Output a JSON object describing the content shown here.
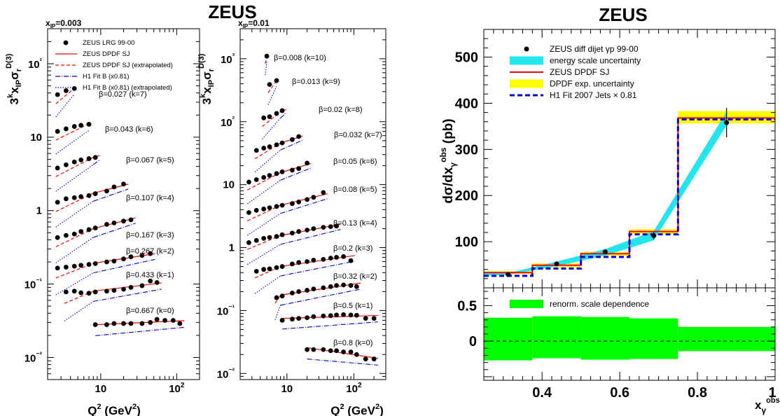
{
  "figure": {
    "left_title": "ZEUS",
    "right_title": "ZEUS"
  },
  "chart_data": [
    {
      "type": "scatter",
      "title": "",
      "panel_label": "x_IP=0.003",
      "xlabel": "Q² (GeV²)",
      "ylabel": "3^k x_IP σ_r^D(3)",
      "xscale": "log",
      "yscale": "log",
      "xlim": [
        2,
        200
      ],
      "ylim": [
        0.005,
        300
      ],
      "xticks": [
        "10",
        "10²"
      ],
      "yticks": [
        "10⁻²",
        "10⁻¹",
        "1",
        "10",
        "10²"
      ],
      "legend": {
        "placement": "top-left",
        "entries": [
          {
            "label": "ZEUS LRG 99-00",
            "style": "dot",
            "color": "#000000"
          },
          {
            "label": "ZEUS DPDF SJ",
            "style": "solid",
            "color": "#ff0000"
          },
          {
            "label": "ZEUS DPDF SJ (extrapolated)",
            "style": "dashed",
            "color": "#ff0000"
          },
          {
            "label": "H1 Fit B (x0.81)",
            "style": "dashdot",
            "color": "#0000cc"
          },
          {
            "label": "H1 Fit B (x0.81) (extrapolated)",
            "style": "dotted",
            "color": "#0000cc"
          }
        ]
      },
      "series": [
        {
          "name": "β=0.027 (k=7)",
          "x": [
            2.7,
            3.5,
            4.5
          ],
          "y": [
            38,
            43,
            46
          ]
        },
        {
          "name": "β=0.043 (k=6)",
          "x": [
            2.7,
            3.5,
            4.5,
            5.5,
            7.0
          ],
          "y": [
            12,
            13,
            14,
            14.5,
            15
          ]
        },
        {
          "name": "β=0.067 (k=5)",
          "x": [
            2.7,
            3.5,
            4.5,
            5.5,
            7.0,
            8.5
          ],
          "y": [
            3.8,
            4.2,
            4.6,
            4.9,
            5.1,
            5.3
          ]
        },
        {
          "name": "β=0.107 (k=4)",
          "x": [
            2.7,
            3.5,
            4.5,
            5.5,
            7.0,
            8.5,
            12,
            15,
            20
          ],
          "y": [
            1.3,
            1.45,
            1.5,
            1.55,
            1.6,
            1.7,
            1.85,
            2.1,
            2.3
          ]
        },
        {
          "name": "β=0.167 (k=3)",
          "x": [
            2.7,
            3.5,
            4.5,
            5.5,
            7.0,
            8.5,
            12,
            15,
            20,
            25
          ],
          "y": [
            0.43,
            0.46,
            0.48,
            0.52,
            0.55,
            0.58,
            0.65,
            0.68,
            0.72,
            0.75
          ]
        },
        {
          "name": "β=0.267 (k=2)",
          "x": [
            2.7,
            3.5,
            4.5,
            5.5,
            7.0,
            8.5,
            12,
            15,
            20,
            25,
            35,
            45
          ],
          "y": [
            0.165,
            0.17,
            0.175,
            0.18,
            0.185,
            0.19,
            0.2,
            0.205,
            0.22,
            0.235,
            0.245,
            0.26
          ]
        },
        {
          "name": "β=0.433 (k=1)",
          "x": [
            3.5,
            4.5,
            5.5,
            7.0,
            8.5,
            12,
            15,
            20,
            25,
            35,
            45,
            55
          ],
          "y": [
            0.078,
            0.08,
            0.076,
            0.075,
            0.078,
            0.08,
            0.082,
            0.085,
            0.09,
            0.095,
            0.11,
            0.105
          ]
        },
        {
          "name": "β=0.667 (k=0)",
          "x": [
            8.5,
            12,
            15,
            20,
            25,
            35,
            45,
            55,
            70,
            90,
            110
          ],
          "y": [
            0.028,
            0.028,
            0.029,
            0.029,
            0.029,
            0.029,
            0.03,
            0.033,
            0.032,
            0.032,
            0.029
          ]
        }
      ]
    },
    {
      "type": "scatter",
      "title": "",
      "panel_label": "x_IP=0.01",
      "xlabel": "Q² (GeV²)",
      "ylabel": "3^k x_IP σ_r^D(3)",
      "xscale": "log",
      "yscale": "log",
      "xlim": [
        2,
        300
      ],
      "ylim": [
        0.008,
        3000
      ],
      "xticks": [
        "10",
        "10²"
      ],
      "yticks": [
        "10⁻²",
        "10⁻¹",
        "1",
        "10",
        "10²",
        "10³"
      ],
      "series": [
        {
          "name": "β=0.008 (k=10)",
          "x": [
            5.0
          ],
          "y": [
            1100
          ]
        },
        {
          "name": "β=0.013 (k=9)",
          "x": [
            5.5,
            7.0
          ],
          "y": [
            390,
            450
          ]
        },
        {
          "name": "β=0.02 (k=8)",
          "x": [
            4.5,
            5.5,
            7.0,
            8.5
          ],
          "y": [
            115,
            120,
            135,
            150
          ]
        },
        {
          "name": "β=0.032 (k=7)",
          "x": [
            3.5,
            4.5,
            5.5,
            7.0,
            8.5,
            12,
            15
          ],
          "y": [
            35,
            38,
            40,
            43,
            46,
            52,
            58
          ]
        },
        {
          "name": "β=0.05 (k=6)",
          "x": [
            2.7,
            3.5,
            4.5,
            5.5,
            7.0,
            8.5,
            12,
            15,
            20
          ],
          "y": [
            11,
            12,
            13,
            14,
            15,
            16,
            17,
            18,
            22
          ]
        },
        {
          "name": "β=0.08 (k=5)",
          "x": [
            2.7,
            3.5,
            4.5,
            5.5,
            7.0,
            8.5,
            12,
            15,
            20,
            25,
            35
          ],
          "y": [
            3.6,
            3.9,
            4.1,
            4.3,
            4.5,
            4.7,
            5.0,
            5.3,
            5.8,
            6.3,
            7.5
          ]
        },
        {
          "name": "β=0.13 (k=4)",
          "x": [
            2.7,
            3.5,
            4.5,
            5.5,
            7.0,
            8.5,
            12,
            15,
            20,
            25,
            35,
            45,
            55
          ],
          "y": [
            1.2,
            1.3,
            1.4,
            1.45,
            1.5,
            1.6,
            1.7,
            1.8,
            1.9,
            2.0,
            2.1,
            2.15,
            2.2
          ]
        },
        {
          "name": "β=0.2 (k=3)",
          "x": [
            3.5,
            4.5,
            5.5,
            7.0,
            8.5,
            12,
            15,
            20,
            25,
            35,
            45,
            55,
            70,
            90
          ],
          "y": [
            0.42,
            0.45,
            0.46,
            0.48,
            0.5,
            0.55,
            0.58,
            0.6,
            0.63,
            0.65,
            0.68,
            0.7,
            0.72,
            0.62
          ]
        },
        {
          "name": "β=0.32 (k=2)",
          "x": [
            7.0,
            8.5,
            12,
            15,
            20,
            25,
            35,
            45,
            55,
            70,
            90,
            110
          ],
          "y": [
            0.16,
            0.17,
            0.19,
            0.2,
            0.21,
            0.22,
            0.23,
            0.24,
            0.25,
            0.255,
            0.25,
            0.24
          ]
        },
        {
          "name": "β=0.5 (k=1)",
          "x": [
            8.5,
            12,
            15,
            20,
            25,
            35,
            45,
            55,
            70,
            90,
            110,
            150,
            200
          ],
          "y": [
            0.07,
            0.073,
            0.075,
            0.077,
            0.08,
            0.082,
            0.083,
            0.085,
            0.086,
            0.085,
            0.084,
            0.075,
            0.075
          ]
        },
        {
          "name": "β=0.8 (k=0)",
          "x": [
            20,
            25,
            35,
            45,
            55,
            70,
            90,
            110,
            150,
            200
          ],
          "y": [
            0.024,
            0.024,
            0.024,
            0.023,
            0.023,
            0.022,
            0.022,
            0.02,
            0.017,
            0.017
          ]
        }
      ]
    },
    {
      "type": "bar",
      "title": "ZEUS",
      "xlabel": "x_γ^obs",
      "ylabel": "dσ/dx_γ^obs (pb)",
      "xlim": [
        0.25,
        1.0
      ],
      "ylim": [
        0,
        560
      ],
      "xticks": [
        "0.4",
        "0.6",
        "0.8",
        "1"
      ],
      "yticks": [
        "100",
        "200",
        "300",
        "400",
        "500"
      ],
      "legend": {
        "placement": "top-left",
        "entries": [
          {
            "label": "ZEUS diff dijet γp 99-00",
            "style": "dot",
            "color": "#000000"
          },
          {
            "label": "energy scale uncertainty",
            "style": "band",
            "color": "#22e5ee"
          },
          {
            "label": "ZEUS DPDF SJ",
            "style": "solid",
            "color": "#ff0000"
          },
          {
            "label": "DPDF exp. uncertainty",
            "style": "band",
            "color": "#ffff00"
          },
          {
            "label": "H1 Fit 2007 Jets × 0.81",
            "style": "dashed",
            "color": "#0000dd"
          }
        ]
      },
      "bins": [
        [
          0.25,
          0.375
        ],
        [
          0.375,
          0.5
        ],
        [
          0.5,
          0.625
        ],
        [
          0.625,
          0.75
        ],
        [
          0.75,
          1.0
        ]
      ],
      "data": {
        "x": [
          0.3125,
          0.4375,
          0.5625,
          0.6875,
          0.875
        ],
        "y": [
          29,
          52,
          78,
          113,
          358
        ],
        "yerr": [
          3,
          3,
          4,
          8,
          32
        ]
      },
      "energy_scale_band": {
        "x": [
          0.25,
          0.3125,
          0.4375,
          0.5625,
          0.6875,
          0.875
        ],
        "low": [
          26,
          28,
          47,
          70,
          103,
          352
        ],
        "high": [
          33,
          32,
          57,
          84,
          123,
          382
        ]
      },
      "zeus_dpdf_sj": [
        33,
        49,
        74,
        122,
        368
      ],
      "dpdf_exp_band": {
        "low": [
          30,
          45,
          70,
          117,
          356
        ],
        "high": [
          36,
          53,
          78,
          127,
          383
        ]
      },
      "h1_fit": [
        26,
        42,
        67,
        116,
        365
      ]
    },
    {
      "type": "bar",
      "title": "",
      "xlabel": "x_γ^obs",
      "ylabel": "",
      "xlim": [
        0.25,
        1.0
      ],
      "ylim": [
        -0.55,
        0.75
      ],
      "xticks": [
        "0.4",
        "0.6",
        "0.8",
        "1"
      ],
      "yticks": [
        "0",
        "0.5"
      ],
      "legend": {
        "placement": "top-left",
        "entries": [
          {
            "label": "renorm. scale dependence",
            "style": "band",
            "color": "#00ff00"
          }
        ]
      },
      "bins": [
        [
          0.25,
          0.375
        ],
        [
          0.375,
          0.5
        ],
        [
          0.5,
          0.625
        ],
        [
          0.625,
          0.75
        ],
        [
          0.75,
          1.0
        ]
      ],
      "band_low": [
        -0.27,
        -0.24,
        -0.26,
        -0.25,
        -0.14
      ],
      "band_high": [
        0.33,
        0.35,
        0.34,
        0.32,
        0.2
      ]
    }
  ]
}
